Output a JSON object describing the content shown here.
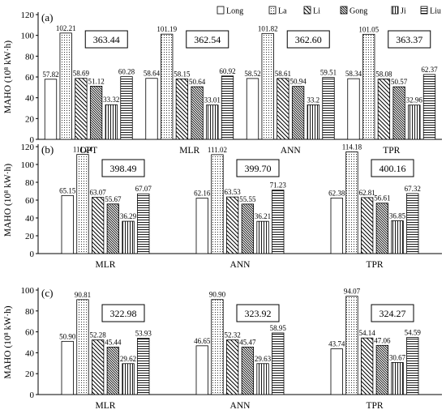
{
  "legend": [
    {
      "name": "Long",
      "pattern": "blank"
    },
    {
      "name": "La",
      "pattern": "dots"
    },
    {
      "name": "Li",
      "pattern": "diag-down"
    },
    {
      "name": "Gong",
      "pattern": "diag-dense"
    },
    {
      "name": "Ji",
      "pattern": "vertical"
    },
    {
      "name": "Liu",
      "pattern": "horizontal"
    }
  ],
  "colors": {
    "axis": "#000000",
    "bar_stroke": "#000000",
    "background": "#ffffff"
  },
  "chart_data": [
    {
      "type": "bar",
      "panel_label": "(a)",
      "ylabel": "MAHO (10⁸ kW·h)",
      "ylim": [
        0,
        120
      ],
      "yticks": [
        0,
        20,
        40,
        60,
        80,
        100,
        120
      ],
      "categories": [
        "OPT",
        "MLR",
        "ANN",
        "TPR"
      ],
      "totals": [
        "363.44",
        "362.54",
        "362.60",
        "363.37"
      ],
      "series": [
        {
          "name": "Long",
          "values": [
            57.82,
            58.64,
            58.52,
            58.34
          ],
          "labels": [
            "57.82",
            "58.64",
            "58.52",
            "58.34"
          ]
        },
        {
          "name": "La",
          "values": [
            102.21,
            101.19,
            101.82,
            101.05
          ],
          "labels": [
            "102.21",
            "101.19",
            "101.82",
            "101.05"
          ]
        },
        {
          "name": "Li",
          "values": [
            58.69,
            58.15,
            58.61,
            58.08
          ],
          "labels": [
            "58.69",
            "58.15",
            "58.61",
            "58.08"
          ]
        },
        {
          "name": "Gong",
          "values": [
            51.12,
            50.64,
            50.94,
            50.57
          ],
          "labels": [
            "51.12",
            "50.64",
            "50.94",
            "50.57"
          ]
        },
        {
          "name": "Ji",
          "values": [
            33.32,
            33.01,
            33.2,
            32.96
          ],
          "labels": [
            "33.32",
            "33.01",
            "33.2",
            "32.96"
          ]
        },
        {
          "name": "Liu",
          "values": [
            60.28,
            60.92,
            59.51,
            62.37
          ],
          "labels": [
            "60.28",
            "60.92",
            "59.51",
            "62.37"
          ]
        }
      ]
    },
    {
      "type": "bar",
      "panel_label": "(b)",
      "ylabel": "MAHO (10⁸ kW·h)",
      "ylim": [
        0,
        120
      ],
      "yticks": [
        0,
        20,
        40,
        60,
        80,
        100,
        120
      ],
      "categories": [
        "MLR",
        "ANN",
        "TPR"
      ],
      "totals": [
        "398.49",
        "399.70",
        "400.16"
      ],
      "series": [
        {
          "name": "Long",
          "values": [
            65.15,
            62.16,
            62.38
          ],
          "labels": [
            "65.15",
            "62.16",
            "62.38"
          ]
        },
        {
          "name": "La",
          "values": [
            111.24,
            111.02,
            114.18
          ],
          "labels": [
            "111.24",
            "111.02",
            "114.18"
          ]
        },
        {
          "name": "Li",
          "values": [
            63.07,
            63.53,
            62.81
          ],
          "labels": [
            "63.07",
            "63.53",
            "62.81"
          ]
        },
        {
          "name": "Gong",
          "values": [
            55.67,
            55.55,
            56.61
          ],
          "labels": [
            "55.67",
            "55.55",
            "56.61"
          ]
        },
        {
          "name": "Ji",
          "values": [
            36.29,
            36.21,
            36.85
          ],
          "labels": [
            "36.29",
            "36.21",
            "36.85"
          ]
        },
        {
          "name": "Liu",
          "values": [
            67.07,
            71.23,
            67.32
          ],
          "labels": [
            "67.07",
            "71.23",
            "67.32"
          ]
        }
      ]
    },
    {
      "type": "bar",
      "panel_label": "(c)",
      "ylabel": "MAHO (10⁸ kW·h)",
      "ylim": [
        0,
        100
      ],
      "yticks": [
        0,
        20,
        40,
        60,
        80,
        100
      ],
      "categories": [
        "MLR",
        "ANN",
        "TPR"
      ],
      "totals": [
        "322.98",
        "323.92",
        "324.27"
      ],
      "series": [
        {
          "name": "Long",
          "values": [
            50.9,
            46.65,
            43.74
          ],
          "labels": [
            "50.90",
            "46.65",
            "43.74"
          ]
        },
        {
          "name": "La",
          "values": [
            90.81,
            90.9,
            94.07
          ],
          "labels": [
            "90.81",
            "90.90",
            "94.07"
          ]
        },
        {
          "name": "Li",
          "values": [
            52.28,
            52.32,
            54.14
          ],
          "labels": [
            "52.28",
            "52.32",
            "54.14"
          ]
        },
        {
          "name": "Gong",
          "values": [
            45.44,
            45.47,
            47.06
          ],
          "labels": [
            "45.44",
            "45.47",
            "47.06"
          ]
        },
        {
          "name": "Ji",
          "values": [
            29.62,
            29.63,
            30.67
          ],
          "labels": [
            "29.62",
            "29.63",
            "30.67"
          ]
        },
        {
          "name": "Liu",
          "values": [
            53.93,
            58.95,
            54.59
          ],
          "labels": [
            "53.93",
            "58.95",
            "54.59"
          ]
        }
      ]
    }
  ]
}
